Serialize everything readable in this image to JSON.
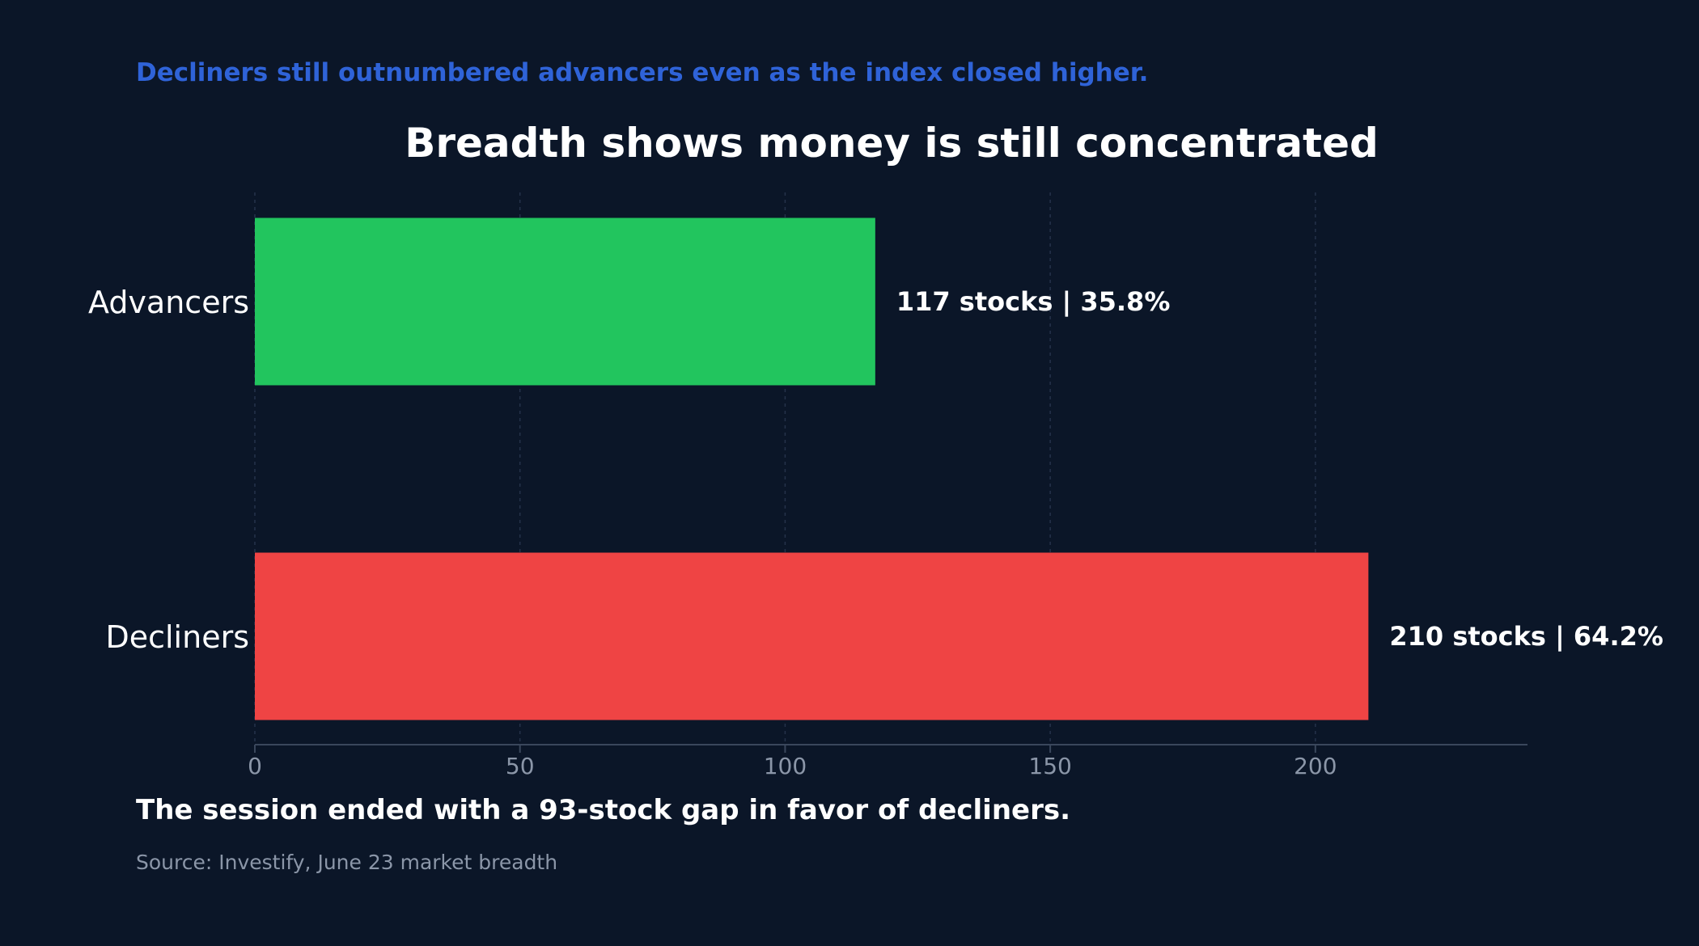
{
  "chart_data": {
    "type": "bar",
    "orientation": "horizontal",
    "subtitle": "Decliners still outnumbered advancers even as the index closed higher.",
    "title": "Breadth shows money is still concentrated",
    "categories": [
      "Advancers",
      "Decliners"
    ],
    "values": [
      117,
      210
    ],
    "data_labels": [
      "117 stocks | 35.8%",
      "210 stocks | 64.2%"
    ],
    "colors": [
      "#22c55e",
      "#ef4444"
    ],
    "xlim": [
      0,
      240
    ],
    "xticks": [
      0,
      50,
      100,
      150,
      200
    ],
    "grid": true,
    "xlabel": "",
    "ylabel": "",
    "footnote": "The session ended with a 93-stock gap in favor of decliners.",
    "source": "Source: Investify, June 23 market breadth"
  },
  "theme": {
    "background": "#0b1628",
    "subtitle_color": "#2f63d8",
    "grid_color": "#25324a",
    "axis_color": "#3a475c",
    "tick_color": "#8b96a8"
  }
}
